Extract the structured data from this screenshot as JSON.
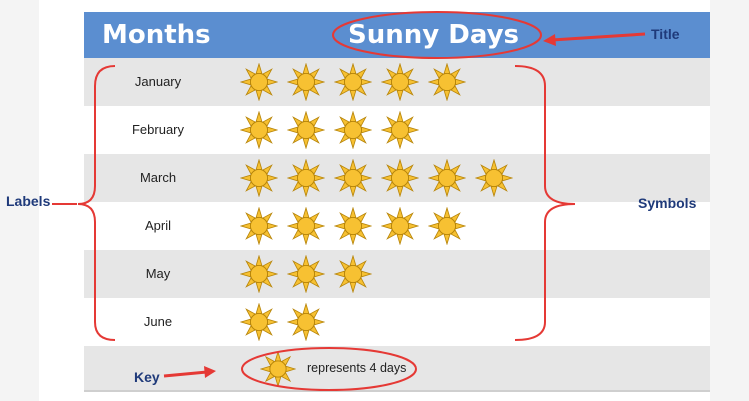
{
  "chart_data": {
    "type": "pictograph",
    "headers": [
      "Months",
      "Sunny Days"
    ],
    "categories": [
      "January",
      "February",
      "March",
      "April",
      "May",
      "June"
    ],
    "symbols": [
      5,
      4,
      6,
      5,
      3,
      2
    ],
    "key": {
      "icon": "sun-icon",
      "text": "represents 4 days",
      "value": 4
    },
    "annotations": {
      "title": "Title",
      "labels": "Labels",
      "symbols": "Symbols",
      "key": "Key"
    }
  },
  "colors": {
    "header": "#5b8ed0",
    "row_shade": "#e6e6e6",
    "annotation": "#1f3a7a",
    "arrow": "#e53935",
    "sun_fill": "#f7c132",
    "sun_stroke": "#b8860b"
  }
}
